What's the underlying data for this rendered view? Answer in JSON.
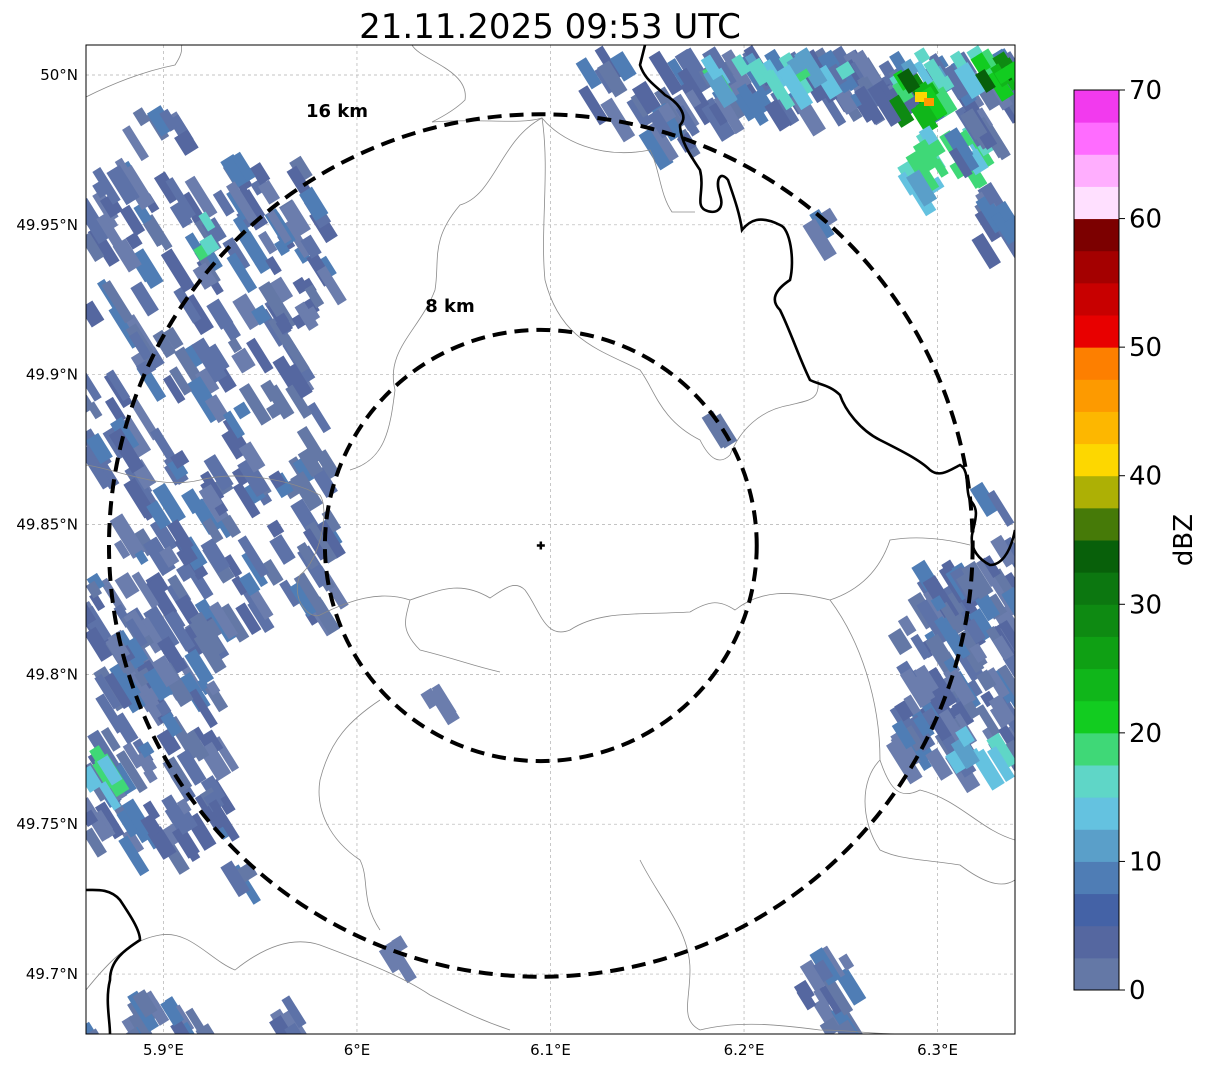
{
  "title": "21.11.2025 09:53 UTC",
  "map": {
    "lon_ticks": [
      {
        "value": 5.9,
        "label": "5.9°E"
      },
      {
        "value": 6.0,
        "label": "6°E"
      },
      {
        "value": 6.1,
        "label": "6.1°E"
      },
      {
        "value": 6.2,
        "label": "6.2°E"
      },
      {
        "value": 6.3,
        "label": "6.3°E"
      }
    ],
    "lat_ticks": [
      {
        "value": 50.0,
        "label": "50°N"
      },
      {
        "value": 49.95,
        "label": "49.95°N"
      },
      {
        "value": 49.9,
        "label": "49.9°N"
      },
      {
        "value": 49.85,
        "label": "49.85°N"
      },
      {
        "value": 49.8,
        "label": "49.8°N"
      },
      {
        "value": 49.75,
        "label": "49.75°N"
      },
      {
        "value": 49.7,
        "label": "49.7°N"
      }
    ],
    "extent": {
      "lon_min": 5.86,
      "lon_max": 6.34,
      "lat_min": 49.68,
      "lat_max": 50.01
    },
    "radar_site": {
      "lon": 6.095,
      "lat": 49.843
    },
    "rings": [
      {
        "label": "8 km",
        "radius_km": 8
      },
      {
        "label": "16 km",
        "radius_km": 16
      }
    ]
  },
  "colorbar": {
    "unit": "dBZ",
    "ticks": [
      "0",
      "10",
      "20",
      "30",
      "40",
      "50",
      "60",
      "70"
    ],
    "min": 0,
    "max": 70,
    "colors": [
      "#6478a6",
      "#5567a0",
      "#4462a6",
      "#4f7db5",
      "#5a9fc9",
      "#64c2e0",
      "#5fd6c7",
      "#3fd877",
      "#12cc20",
      "#10b61a",
      "#0fa014",
      "#0e8a12",
      "#0c7710",
      "#08600a",
      "#467a08",
      "#adb005",
      "#fdd700",
      "#fdb700",
      "#fd9a00",
      "#fd7f00",
      "#e80000",
      "#c80000",
      "#a40000",
      "#7c0000",
      "#ffe0ff",
      "#ffaefe",
      "#ff6cff",
      "#f23aee"
    ]
  }
}
